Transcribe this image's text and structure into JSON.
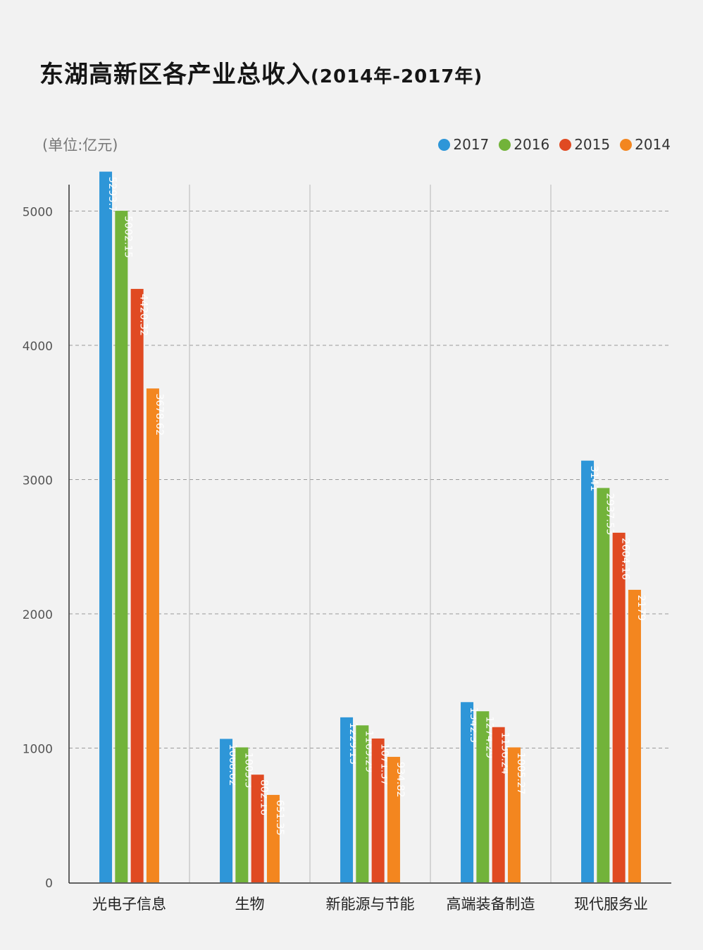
{
  "chart_data": {
    "type": "bar",
    "title": "东湖高新区各产业总收入",
    "subtitle": "(2014年-2017年)",
    "unit_label": "(单位:亿元)",
    "categories": [
      "光电子信息",
      "生物",
      "新能源与节能",
      "高端装备制造",
      "现代服务业"
    ],
    "series": [
      {
        "name": "2017",
        "color": "#2e96d8",
        "values": [
          5293.7,
          1068.62,
          1229.13,
          1342.3,
          3141
        ],
        "labels": [
          "5293.7",
          "1068.62",
          "1229.13",
          "1342.3",
          "3141"
        ]
      },
      {
        "name": "2016",
        "color": "#72b33a",
        "values": [
          5002.15,
          1005.3,
          1169.29,
          1274.29,
          2937.53
        ],
        "labels": [
          "5002.15",
          "1005.3",
          "1169.29",
          "1274.29",
          "2937.53"
        ]
      },
      {
        "name": "2015",
        "color": "#e04a22",
        "values": [
          4420.32,
          802.16,
          1071.37,
          1156.24,
          2604.16
        ],
        "labels": [
          "4420.32",
          "802.16",
          "1071.37",
          "1156.24",
          "2604.16"
        ]
      },
      {
        "name": "2014",
        "color": "#f3861f",
        "values": [
          3678.62,
          651.35,
          934.82,
          1005.27,
          2179
        ],
        "labels": [
          "3678.62",
          "651.35",
          "934.82",
          "1005.27",
          "2179"
        ]
      }
    ],
    "yticks": [
      0,
      1000,
      2000,
      3000,
      4000,
      5000
    ],
    "yticks_labels": [
      "0",
      "1000",
      "2000",
      "3000",
      "4000",
      "5000"
    ],
    "grid": "horizontal dashed",
    "legend": "top-right"
  }
}
